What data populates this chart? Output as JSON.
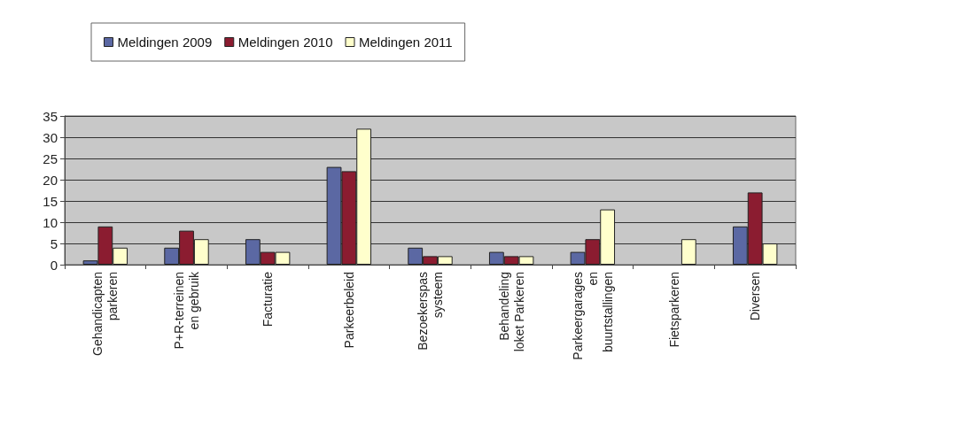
{
  "chart_data": {
    "type": "bar",
    "categories": [
      "Gehandicapten\nparkeren",
      "P+R-terreinen\nen gebruik",
      "Facturatie",
      "Parkeerbeleid",
      "Bezoekerspas\nsysteem",
      "Behandeling\nloket Parkeren",
      "Parkeergarages\nen\nbuurtstallingen",
      "Fietsparkeren",
      "Diversen"
    ],
    "series": [
      {
        "name": "Meldingen 2009",
        "color": "#5b68a3",
        "values": [
          1,
          4,
          6,
          23,
          4,
          3,
          3,
          null,
          9
        ]
      },
      {
        "name": "Meldingen 2010",
        "color": "#8b1c30",
        "values": [
          9,
          8,
          3,
          22,
          2,
          2,
          6,
          null,
          17
        ]
      },
      {
        "name": "Meldingen 2011",
        "color": "#ffffcc",
        "values": [
          4,
          6,
          3,
          32,
          2,
          2,
          13,
          6,
          5
        ]
      }
    ],
    "ylim": [
      0,
      35
    ],
    "yticks": [
      0,
      5,
      10,
      15,
      20,
      25,
      30,
      35
    ],
    "grid": true,
    "legend": "top left"
  }
}
